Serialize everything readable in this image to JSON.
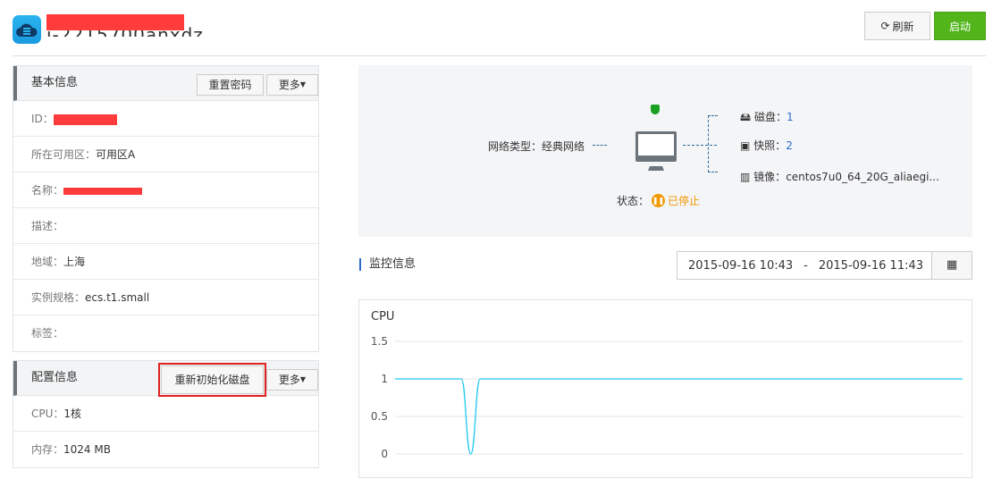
{
  "header": {
    "title": "i-2215700anxdz",
    "refresh_label": "刷新",
    "start_label": "启动"
  },
  "basic_info": {
    "title": "基本信息",
    "reset_password_label": "重置密码",
    "more_label": "更多",
    "rows": [
      {
        "label": "ID：",
        "value": ""
      },
      {
        "label": "所在可用区：",
        "value": "可用区A"
      },
      {
        "label": "名称：",
        "value": ""
      },
      {
        "label": "描述：",
        "value": ""
      },
      {
        "label": "地域：",
        "value": "上海"
      },
      {
        "label": "实例规格：",
        "value": "ecs.t1.small"
      },
      {
        "label": "标签：",
        "value": ""
      }
    ]
  },
  "config_info": {
    "title": "配置信息",
    "reinit_disk_label": "重新初始化磁盘",
    "more_label": "更多",
    "rows": [
      {
        "label": "CPU：",
        "value": "1核"
      },
      {
        "label": "内存：",
        "value": "1024 MB"
      }
    ]
  },
  "topology": {
    "network_label": "网络类型：",
    "network_value": "经典网络",
    "status_label": "状态：",
    "status_value": "已停止",
    "disk_label": "磁盘：",
    "disk_value": "1",
    "snapshot_label": "快照：",
    "snapshot_value": "2",
    "image_label": "镜像：",
    "image_value": "centos7u0_64_20G_aliaegi...",
    "status_color": "#f39800"
  },
  "monitor": {
    "title": "监控信息",
    "start": "2015-09-16 10:43",
    "separator": "-",
    "end": "2015-09-16 11:43"
  },
  "chart_data": {
    "type": "line",
    "title": "CPU",
    "ylim": [
      0,
      1.5
    ],
    "yticks": [
      "1.5",
      "1",
      "0.5",
      "0"
    ],
    "grid": true,
    "color": "#1ec8f0",
    "series": [
      {
        "values": [
          1,
          1,
          1,
          1,
          1,
          1,
          1,
          1,
          0,
          1,
          1,
          1,
          1,
          1,
          1,
          1,
          1,
          1,
          1,
          1,
          1,
          1,
          1,
          1,
          1,
          1,
          1,
          1,
          1,
          1,
          1,
          1,
          1,
          1,
          1,
          1,
          1,
          1,
          1,
          1,
          1,
          1,
          1,
          1,
          1,
          1,
          1,
          1,
          1,
          1,
          1,
          1,
          1,
          1,
          1,
          1,
          1,
          1,
          1,
          1,
          1
        ]
      }
    ]
  }
}
